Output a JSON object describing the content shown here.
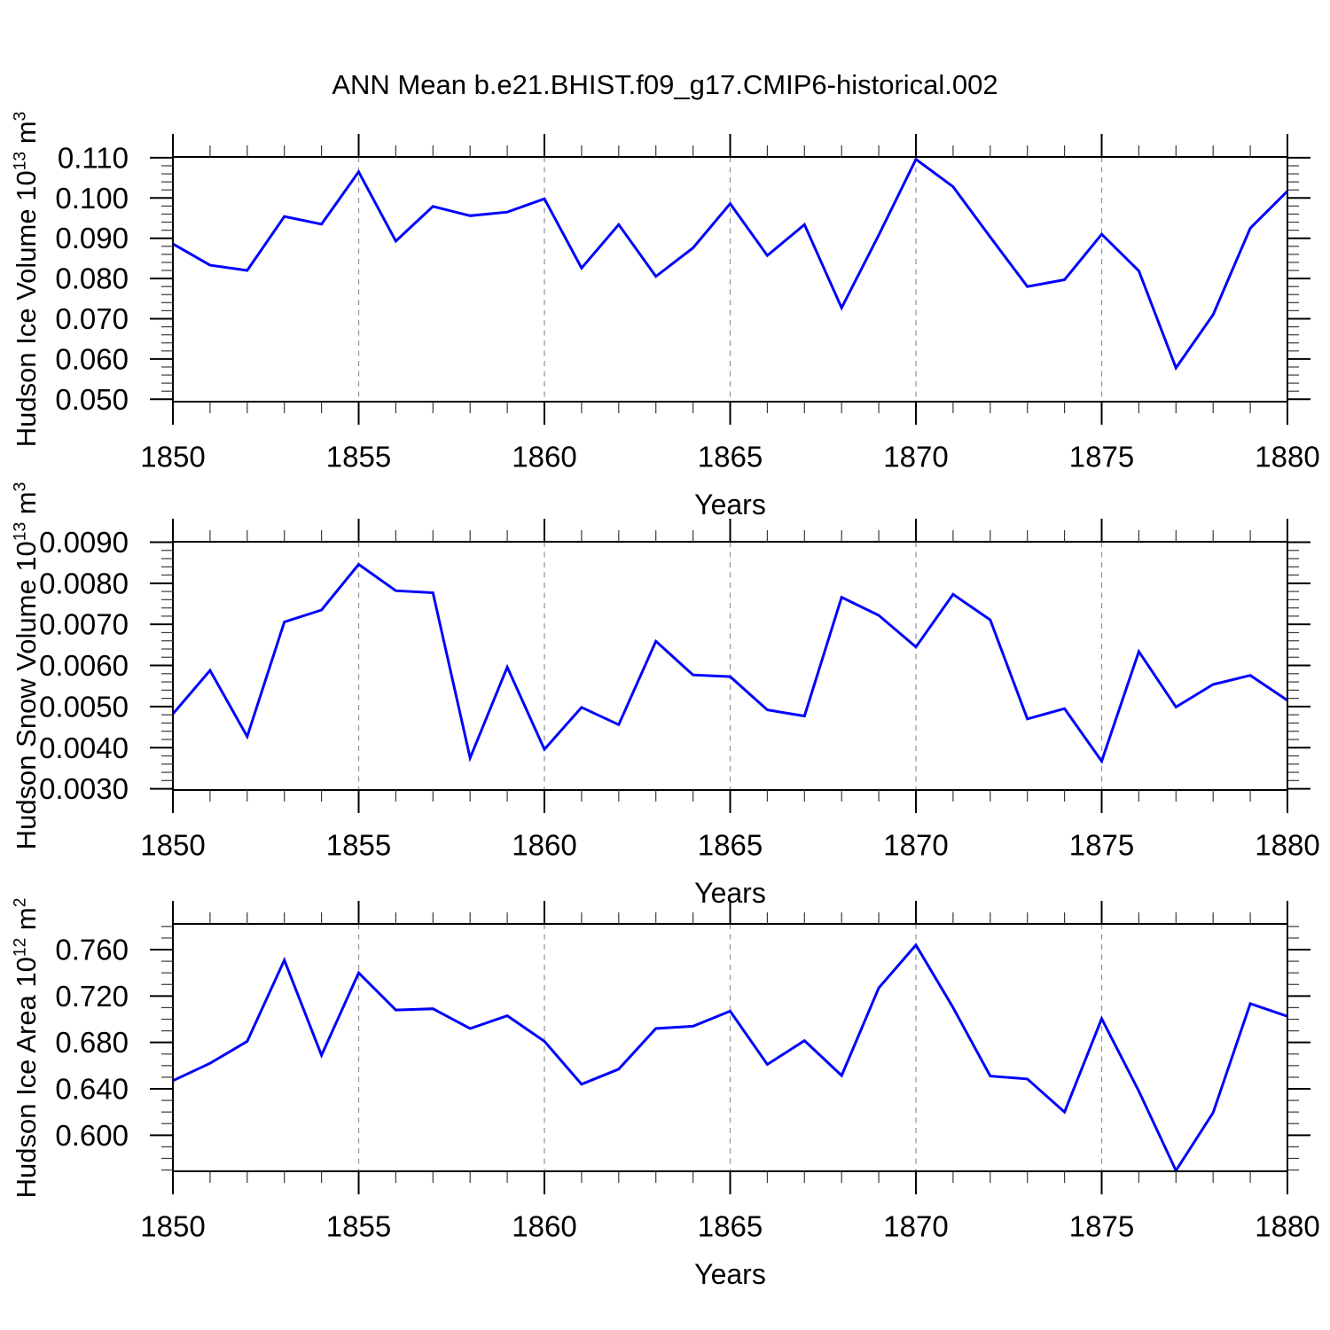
{
  "title": "ANN Mean b.e21.BHIST.f09_g17.CMIP6-historical.002",
  "colors": {
    "series": "#0000FF",
    "frame": "#000000",
    "major_tick": "#000000",
    "minor_tick": "#3a3a3a",
    "gridline": "#999999",
    "background": "#ffffff"
  },
  "chart_data": [
    {
      "type": "line",
      "name": "hudson-ice-volume",
      "title": "",
      "xlabel": "Years",
      "ylabel": {
        "base": "Hudson Ice Volume 10",
        "exp": "13",
        "unit": " m",
        "unit_exp": "3"
      },
      "legend": "none",
      "grid": "vertical-dashed-at-major-x",
      "x_range": [
        1850,
        1880
      ],
      "x_major_step": 5,
      "x_minor_step": 1,
      "xtick_labels": [
        "1850",
        "1855",
        "1860",
        "1865",
        "1870",
        "1875",
        "1880"
      ],
      "grid_years": [
        1855,
        1860,
        1865,
        1870,
        1875
      ],
      "ylim": [
        0.0494,
        0.1102
      ],
      "y_minor_step": 0.002,
      "yticks": [
        {
          "v": 0.05,
          "label": "0.050"
        },
        {
          "v": 0.06,
          "label": "0.060"
        },
        {
          "v": 0.07,
          "label": "0.070"
        },
        {
          "v": 0.08,
          "label": "0.080"
        },
        {
          "v": 0.09,
          "label": "0.090"
        },
        {
          "v": 0.1,
          "label": "0.100"
        },
        {
          "v": 0.11,
          "label": "0.110"
        }
      ],
      "years": [
        1850,
        1851,
        1852,
        1853,
        1854,
        1855,
        1856,
        1857,
        1858,
        1859,
        1860,
        1861,
        1862,
        1863,
        1864,
        1865,
        1866,
        1867,
        1868,
        1869,
        1870,
        1871,
        1872,
        1873,
        1874,
        1875,
        1876,
        1877,
        1878,
        1879,
        1880
      ],
      "values": [
        0.0886,
        0.0833,
        0.082,
        0.0954,
        0.0935,
        0.1065,
        0.0893,
        0.0979,
        0.0956,
        0.0965,
        0.0998,
        0.0826,
        0.0934,
        0.0805,
        0.0876,
        0.0986,
        0.0857,
        0.0934,
        0.0727,
        0.0908,
        0.1096,
        0.1028,
        0.0903,
        0.078,
        0.0797,
        0.091,
        0.0819,
        0.0578,
        0.071,
        0.0925,
        0.1017
      ]
    },
    {
      "type": "line",
      "name": "hudson-snow-volume",
      "title": "",
      "xlabel": "Years",
      "ylabel": {
        "base": "Hudson Snow Volume 10",
        "exp": "13",
        "unit": " m",
        "unit_exp": "3"
      },
      "legend": "none",
      "grid": "vertical-dashed-at-major-x",
      "x_range": [
        1850,
        1880
      ],
      "x_major_step": 5,
      "x_minor_step": 1,
      "xtick_labels": [
        "1850",
        "1855",
        "1860",
        "1865",
        "1870",
        "1875",
        "1880"
      ],
      "grid_years": [
        1855,
        1860,
        1865,
        1870,
        1875
      ],
      "ylim": [
        0.00297,
        0.00901
      ],
      "y_minor_step": 0.0002,
      "yticks": [
        {
          "v": 0.003,
          "label": "0.0030"
        },
        {
          "v": 0.004,
          "label": "0.0040"
        },
        {
          "v": 0.005,
          "label": "0.0050"
        },
        {
          "v": 0.006,
          "label": "0.0060"
        },
        {
          "v": 0.007,
          "label": "0.0070"
        },
        {
          "v": 0.008,
          "label": "0.0080"
        },
        {
          "v": 0.009,
          "label": "0.0090"
        }
      ],
      "years": [
        1850,
        1851,
        1852,
        1853,
        1854,
        1855,
        1856,
        1857,
        1858,
        1859,
        1860,
        1861,
        1862,
        1863,
        1864,
        1865,
        1866,
        1867,
        1868,
        1869,
        1870,
        1871,
        1872,
        1873,
        1874,
        1875,
        1876,
        1877,
        1878,
        1879,
        1880
      ],
      "values": [
        0.00482,
        0.00588,
        0.00427,
        0.00706,
        0.00735,
        0.00846,
        0.00782,
        0.00777,
        0.00375,
        0.00596,
        0.00396,
        0.00498,
        0.00456,
        0.00659,
        0.00577,
        0.00573,
        0.00492,
        0.00477,
        0.00766,
        0.00722,
        0.00645,
        0.00773,
        0.00711,
        0.0047,
        0.00495,
        0.00367,
        0.00634,
        0.00499,
        0.00554,
        0.00576,
        0.00515
      ]
    },
    {
      "type": "line",
      "name": "hudson-ice-area",
      "title": "",
      "xlabel": "Years",
      "ylabel": {
        "base": "Hudson Ice Area 10",
        "exp": "12",
        "unit": " m",
        "unit_exp": "2"
      },
      "legend": "none",
      "grid": "vertical-dashed-at-major-x",
      "x_range": [
        1850,
        1880
      ],
      "x_major_step": 5,
      "x_minor_step": 1,
      "xtick_labels": [
        "1850",
        "1855",
        "1860",
        "1865",
        "1870",
        "1875",
        "1880"
      ],
      "grid_years": [
        1855,
        1860,
        1865,
        1870,
        1875
      ],
      "ylim": [
        0.5689,
        0.7822
      ],
      "y_minor_step": 0.01,
      "yticks": [
        {
          "v": 0.6,
          "label": "0.600"
        },
        {
          "v": 0.64,
          "label": "0.640"
        },
        {
          "v": 0.68,
          "label": "0.680"
        },
        {
          "v": 0.72,
          "label": "0.720"
        },
        {
          "v": 0.76,
          "label": "0.760"
        }
      ],
      "years": [
        1850,
        1851,
        1852,
        1853,
        1854,
        1855,
        1856,
        1857,
        1858,
        1859,
        1860,
        1861,
        1862,
        1863,
        1864,
        1865,
        1866,
        1867,
        1868,
        1869,
        1870,
        1871,
        1872,
        1873,
        1874,
        1875,
        1876,
        1877,
        1878,
        1879,
        1880
      ],
      "values": [
        0.647,
        0.662,
        0.681,
        0.751,
        0.669,
        0.74,
        0.708,
        0.709,
        0.692,
        0.703,
        0.681,
        0.644,
        0.657,
        0.692,
        0.694,
        0.707,
        0.661,
        0.6815,
        0.6515,
        0.727,
        0.764,
        0.71,
        0.651,
        0.6485,
        0.62,
        0.7005,
        0.638,
        0.5695,
        0.6195,
        0.7135,
        0.7025
      ]
    }
  ]
}
